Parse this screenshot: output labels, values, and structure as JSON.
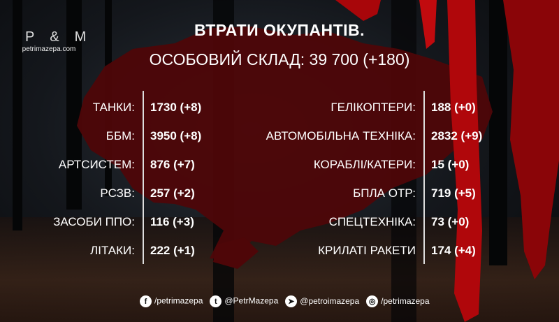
{
  "logo": {
    "letters": "P&M",
    "site": "petrimazepa.com"
  },
  "title": "ВТРАТИ ОКУПАНТІВ.",
  "subtitle": "ОСОБОВИЙ СКЛАД: 39 700 (+180)",
  "left": [
    {
      "label": "ТАНКИ:",
      "value": "1730 (+8)"
    },
    {
      "label": "ББМ:",
      "value": "3950 (+8)"
    },
    {
      "label": "АРТСИСТЕМ:",
      "value": "876 (+7)"
    },
    {
      "label": "РСЗВ:",
      "value": "257 (+2)"
    },
    {
      "label": "ЗАСОБИ ППО:",
      "value": "116 (+3)"
    },
    {
      "label": "ЛІТАКИ:",
      "value": "222 (+1)"
    }
  ],
  "right": [
    {
      "label": "ГЕЛІКОПТЕРИ:",
      "value": "188 (+0)"
    },
    {
      "label": "АВТОМОБІЛЬНА ТЕХНІКА:",
      "value": "2832 (+9)"
    },
    {
      "label": "КОРАБЛІ/КАТЕРИ:",
      "value": "15 (+0)"
    },
    {
      "label": "БПЛА ОТР:",
      "value": "719 (+5)"
    },
    {
      "label": "СПЕЦТЕХНІКА:",
      "value": "73 (+0)"
    },
    {
      "label": "КРИЛАТІ РАКЕТИ",
      "value": "174 (+4)"
    }
  ],
  "social": [
    {
      "icon": "facebook-icon",
      "text": "/petrimazepa"
    },
    {
      "icon": "twitter-icon",
      "text": "@PetrMazepa"
    },
    {
      "icon": "telegram-icon",
      "text": "@petroimazepa"
    },
    {
      "icon": "instagram-icon",
      "text": "/petrimazepa"
    }
  ],
  "colors": {
    "map": "#5a0a0c",
    "blood": "#b0070b"
  }
}
